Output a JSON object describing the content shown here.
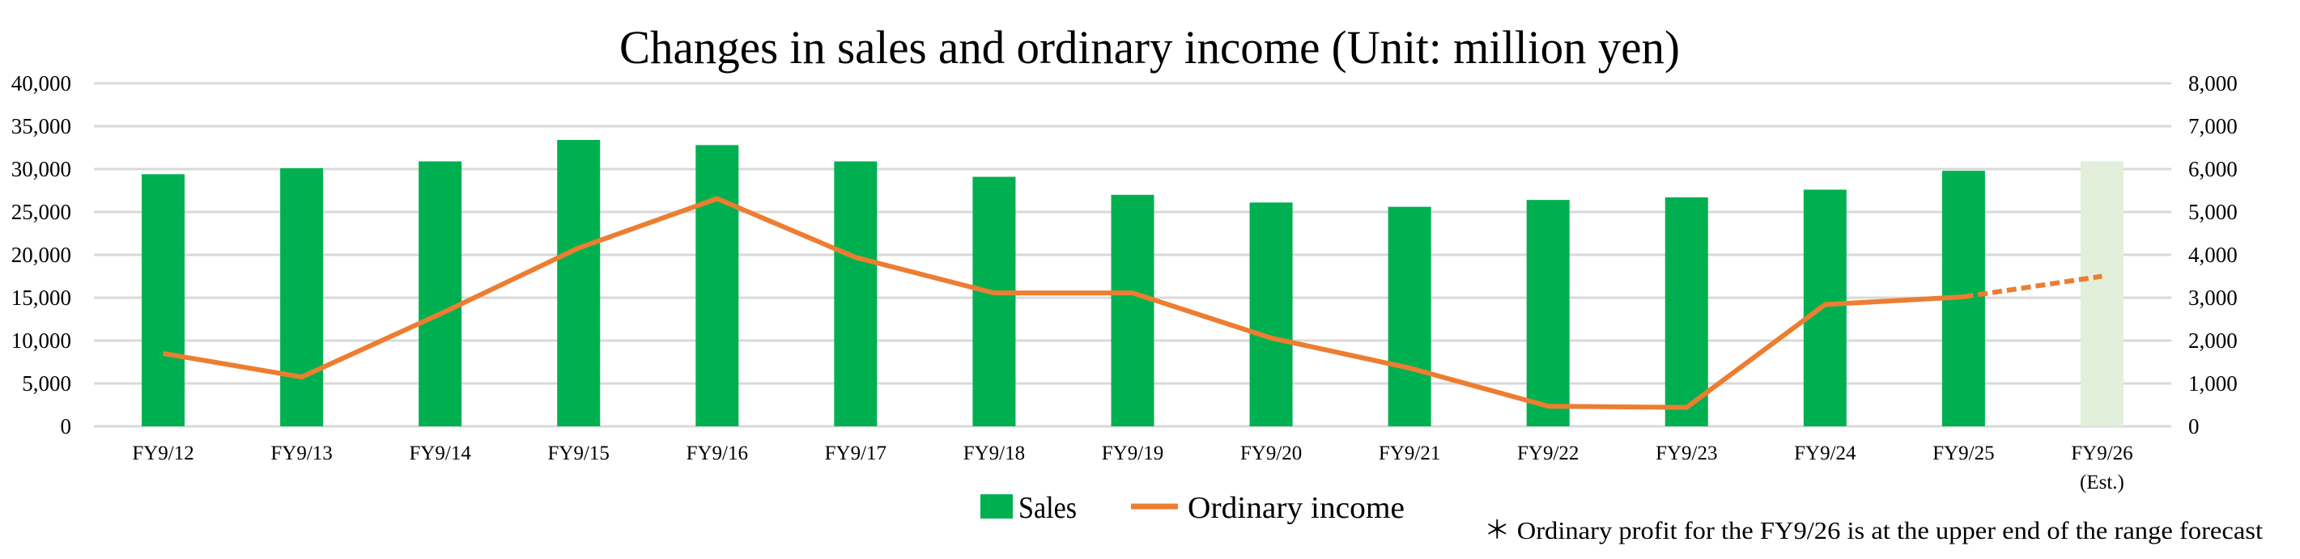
{
  "chart_data": {
    "type": "bar+line",
    "title": "Changes in sales and ordinary income (Unit: million yen)",
    "categories": [
      "FY9/12",
      "FY9/13",
      "FY9/14",
      "FY9/15",
      "FY9/16",
      "FY9/17",
      "FY9/18",
      "FY9/19",
      "FY9/20",
      "FY9/21",
      "FY9/22",
      "FY9/23",
      "FY9/24",
      "FY9/25",
      "FY9/26"
    ],
    "category_sublabels": {
      "14": "(Est.)"
    },
    "y_left": {
      "range": [
        0,
        40000
      ],
      "ticks": [
        "0",
        "5,000",
        "10,000",
        "15,000",
        "20,000",
        "25,000",
        "30,000",
        "35,000",
        "40,000"
      ],
      "step": 5000
    },
    "y_right": {
      "range": [
        0,
        8000
      ],
      "ticks": [
        "0",
        "1,000",
        "2,000",
        "3,000",
        "4,000",
        "5,000",
        "6,000",
        "7,000",
        "8,000"
      ],
      "step": 1000
    },
    "grid": true,
    "series": [
      {
        "name": "Sales",
        "type": "bar",
        "axis": "left",
        "color": "#00b050",
        "estimate_color": "#e2efda",
        "values": [
          29400,
          30100,
          30900,
          33400,
          32800,
          30900,
          29100,
          27000,
          26100,
          25600,
          26400,
          26700,
          27600,
          29800,
          30900
        ],
        "estimate_from_index": 14
      },
      {
        "name": "Ordinary income",
        "type": "line",
        "axis": "right",
        "color": "#ed7d31",
        "values": [
          1700,
          1150,
          2620,
          4160,
          5310,
          3940,
          3110,
          3110,
          2060,
          1360,
          470,
          440,
          2840,
          3020,
          3500
        ],
        "dashed_from_index": 13
      }
    ],
    "legend": {
      "placement": "bottom",
      "items": [
        "Sales",
        "Ordinary income"
      ]
    },
    "footnote": "＊ Ordinary profit for the FY9/26 is at the upper end of the range forecast"
  }
}
